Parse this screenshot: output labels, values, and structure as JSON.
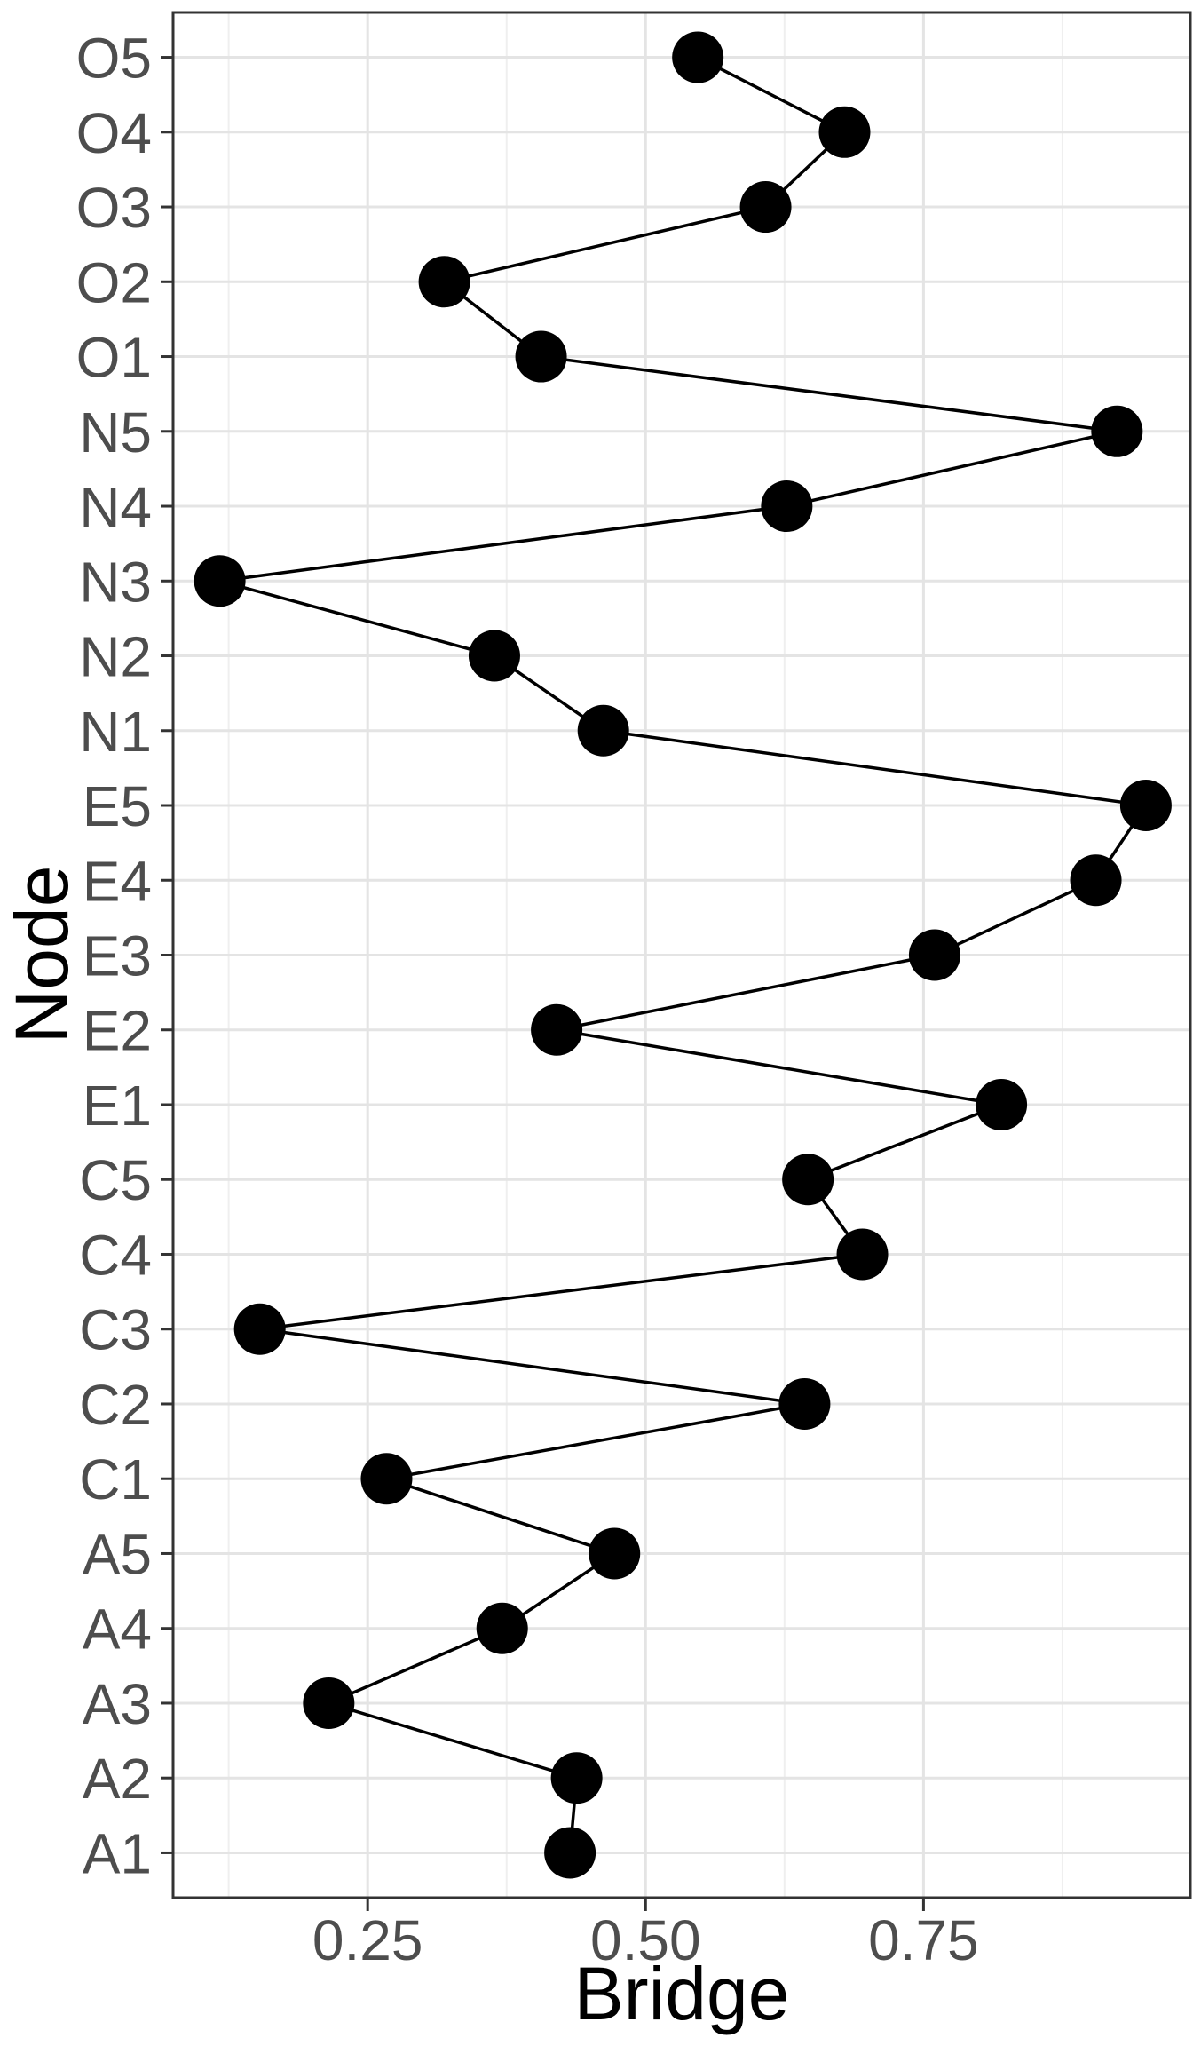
{
  "chart_data": {
    "type": "line",
    "orientation": "categories-on-y-axis",
    "title": "",
    "xlabel": "Bridge",
    "ylabel": "Node",
    "categories_bottom_to_top": [
      "A1",
      "A2",
      "A3",
      "A4",
      "A5",
      "C1",
      "C2",
      "C3",
      "C4",
      "C5",
      "E1",
      "E2",
      "E3",
      "E4",
      "E5",
      "N1",
      "N2",
      "N3",
      "N4",
      "N5",
      "O1",
      "O2",
      "O3",
      "O4",
      "O5"
    ],
    "values": [
      0.432,
      0.438,
      0.215,
      0.371,
      0.472,
      0.267,
      0.643,
      0.153,
      0.695,
      0.646,
      0.82,
      0.42,
      0.76,
      0.905,
      0.95,
      0.462,
      0.364,
      0.117,
      0.627,
      0.924,
      0.406,
      0.319,
      0.608,
      0.679,
      0.547
    ],
    "x_tick_labels": [
      "0.25",
      "0.50",
      "0.75"
    ],
    "x_tick_values": [
      0.25,
      0.5,
      0.75
    ],
    "x_minor_tick_values": [
      0.125,
      0.375,
      0.625,
      0.875
    ],
    "xlim": [
      0.075,
      0.99
    ],
    "grid": "major-and-minor-x, major-y",
    "legend": false,
    "marker": "filled-circle",
    "colors": {
      "point": "#000000",
      "line": "#000000",
      "panel_border": "#333333",
      "tick_mark": "#333333",
      "grid_major": "#e4e4e4",
      "grid_minor": "#efefef",
      "tick_label": "#4d4d4d",
      "axis_title": "#000000",
      "background": "#ffffff"
    }
  }
}
